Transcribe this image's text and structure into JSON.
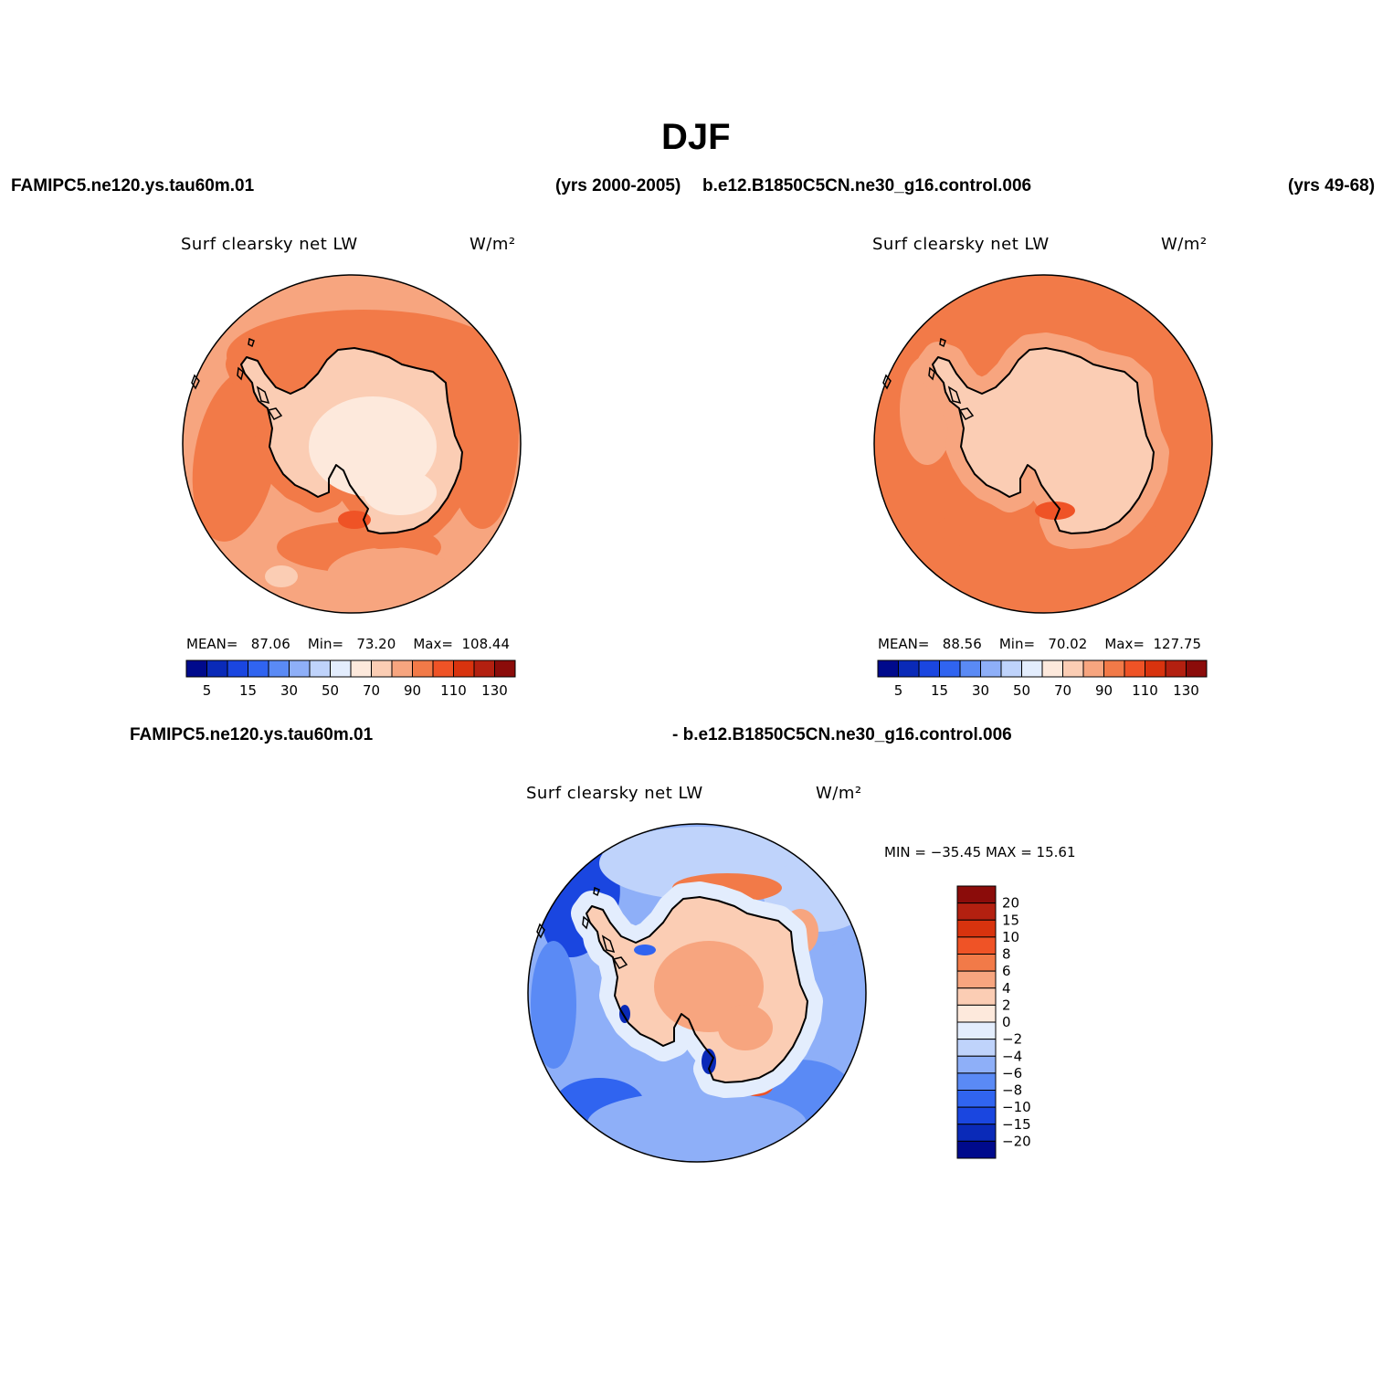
{
  "page": {
    "title": "DJF",
    "header_left_case": "FAMIPC5.ne120.ys.tau60m.01",
    "header_left_years": "(yrs 2000-2005)",
    "header_right_case": "b.e12.B1850C5CN.ne30_g16.control.006",
    "header_right_years": "(yrs 49-68)",
    "diff_left_case": "FAMIPC5.ne120.ys.tau60m.01",
    "diff_right_case": "- b.e12.B1850C5CN.ne30_g16.control.006"
  },
  "palette": {
    "abs": [
      "#000a8c",
      "#0a2ab8",
      "#1a46e0",
      "#3064f0",
      "#5a8af5",
      "#8eaff8",
      "#bfd3fb",
      "#e3edfd",
      "#fde9dc",
      "#fbcdb4",
      "#f7a57f",
      "#f27a48",
      "#ef5326",
      "#d8330e",
      "#b32010",
      "#8b0c0a"
    ],
    "diff": [
      "#000a8c",
      "#0a2ab8",
      "#1a46e0",
      "#3064f0",
      "#5a8af5",
      "#8eaff8",
      "#bfd3fb",
      "#e3edfd",
      "#fde9dc",
      "#fbcdb4",
      "#f7a57f",
      "#f27a48",
      "#ef5326",
      "#d8330e",
      "#b32010",
      "#8b0c0a"
    ]
  },
  "chart_data": [
    {
      "type": "heatmap",
      "projection": "south-polar-stereographic",
      "case": "FAMIPC5.ne120.ys.tau60m.01",
      "title": "Surf clearsky net LW",
      "units": "W/m²",
      "mean_label": "MEAN=",
      "mean": "87.06",
      "min_label": "Min=",
      "min": "73.20",
      "max_label": "Max=",
      "max": "108.44",
      "colorbar_levels": [
        "5",
        "15",
        "30",
        "50",
        "70",
        "90",
        "110",
        "130"
      ],
      "colorbar_orientation": "horizontal",
      "field_description": {
        "ocean_south": 90,
        "ocean_ring": 100,
        "coast": 80,
        "antarctic_interior": 75
      }
    },
    {
      "type": "heatmap",
      "projection": "south-polar-stereographic",
      "case": "b.e12.B1850C5CN.ne30_g16.control.006",
      "title": "Surf clearsky net LW",
      "units": "W/m²",
      "mean_label": "MEAN=",
      "mean": "88.56",
      "min_label": "Min=",
      "min": "70.02",
      "max_label": "Max=",
      "max": "127.75",
      "colorbar_levels": [
        "5",
        "15",
        "30",
        "50",
        "70",
        "90",
        "110",
        "130"
      ],
      "colorbar_orientation": "horizontal",
      "field_description": {
        "ocean": 100,
        "coast": 85,
        "antarctic_interior": 75
      }
    },
    {
      "type": "heatmap",
      "projection": "south-polar-stereographic",
      "case": "difference",
      "title": "Surf clearsky net LW",
      "units": "W/m²",
      "minmax_label": "MIN =  −35.45  MAX =   15.61",
      "min": -35.45,
      "max": 15.61,
      "colorbar_levels": [
        "20",
        "15",
        "10",
        "8",
        "6",
        "4",
        "2",
        "0",
        "−2",
        "−4",
        "−6",
        "−8",
        "−10",
        "−15",
        "−20"
      ],
      "colorbar_orientation": "vertical",
      "field_description": {
        "ocean": -5,
        "coast": 5,
        "antarctic_interior": 3
      }
    }
  ]
}
